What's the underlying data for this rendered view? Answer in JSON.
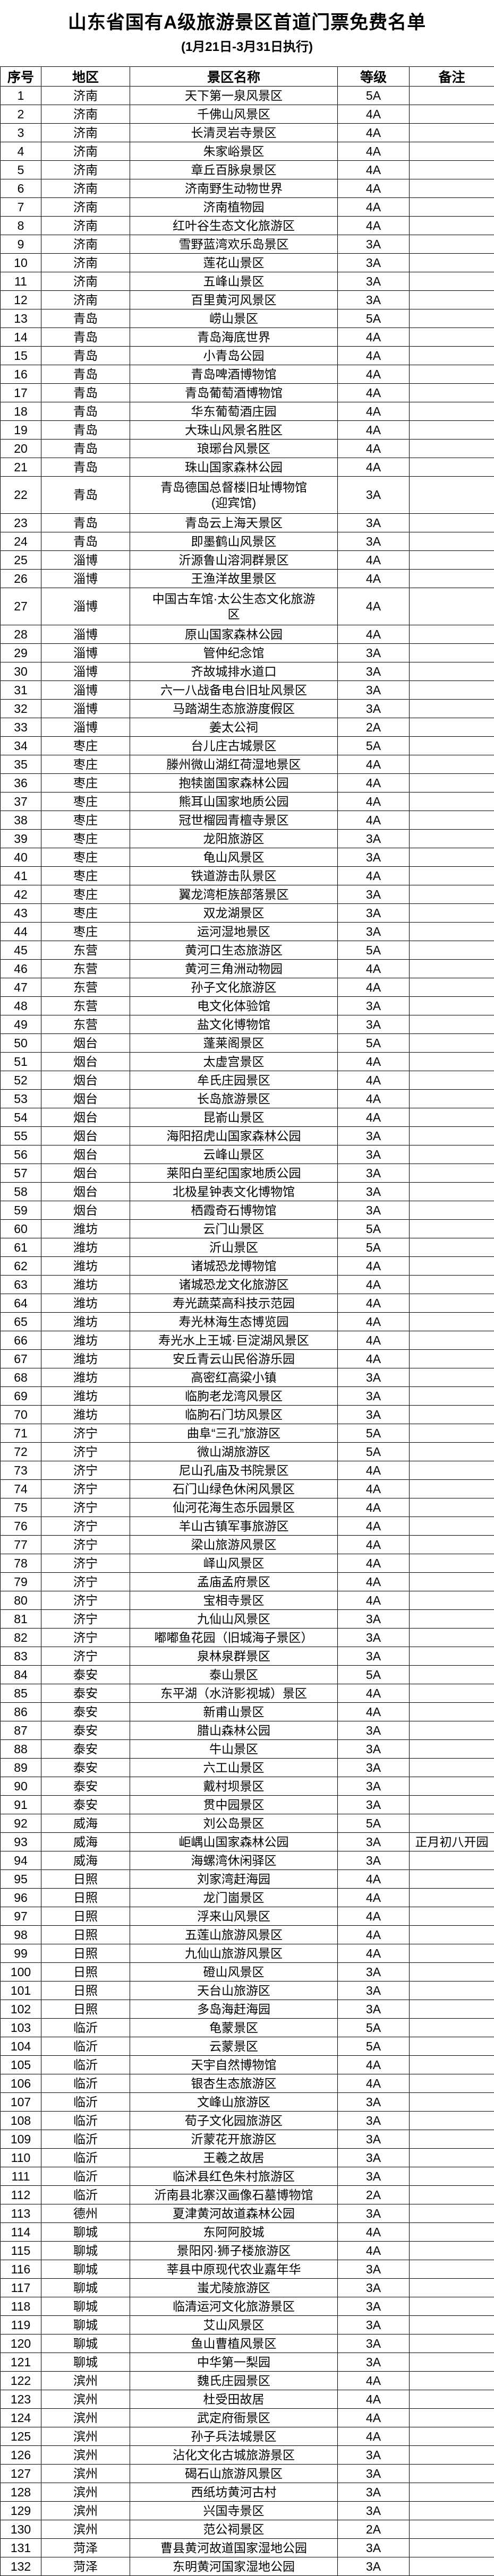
{
  "title": "山东省国有A级旅游景区首道门票免费名单",
  "subtitle": "(1月21日-3月31日执行)",
  "columns": [
    "序号",
    "地区",
    "景区名称",
    "等级",
    "备注"
  ],
  "rows": [
    {
      "no": "1",
      "region": "济南",
      "name": "天下第一泉风景区",
      "grade": "5A",
      "remark": ""
    },
    {
      "no": "2",
      "region": "济南",
      "name": "千佛山风景区",
      "grade": "4A",
      "remark": ""
    },
    {
      "no": "3",
      "region": "济南",
      "name": "长清灵岩寺景区",
      "grade": "4A",
      "remark": ""
    },
    {
      "no": "4",
      "region": "济南",
      "name": "朱家峪景区",
      "grade": "4A",
      "remark": ""
    },
    {
      "no": "5",
      "region": "济南",
      "name": "章丘百脉泉景区",
      "grade": "4A",
      "remark": ""
    },
    {
      "no": "6",
      "region": "济南",
      "name": "济南野生动物世界",
      "grade": "4A",
      "remark": ""
    },
    {
      "no": "7",
      "region": "济南",
      "name": "济南植物园",
      "grade": "4A",
      "remark": ""
    },
    {
      "no": "8",
      "region": "济南",
      "name": "红叶谷生态文化旅游区",
      "grade": "4A",
      "remark": ""
    },
    {
      "no": "9",
      "region": "济南",
      "name": "雪野蓝湾欢乐岛景区",
      "grade": "3A",
      "remark": ""
    },
    {
      "no": "10",
      "region": "济南",
      "name": "莲花山景区",
      "grade": "3A",
      "remark": ""
    },
    {
      "no": "11",
      "region": "济南",
      "name": "五峰山景区",
      "grade": "3A",
      "remark": ""
    },
    {
      "no": "12",
      "region": "济南",
      "name": "百里黄河风景区",
      "grade": "3A",
      "remark": ""
    },
    {
      "no": "13",
      "region": "青岛",
      "name": "崂山景区",
      "grade": "5A",
      "remark": ""
    },
    {
      "no": "14",
      "region": "青岛",
      "name": "青岛海底世界",
      "grade": "4A",
      "remark": ""
    },
    {
      "no": "15",
      "region": "青岛",
      "name": "小青岛公园",
      "grade": "4A",
      "remark": ""
    },
    {
      "no": "16",
      "region": "青岛",
      "name": "青岛啤酒博物馆",
      "grade": "4A",
      "remark": ""
    },
    {
      "no": "17",
      "region": "青岛",
      "name": "青岛葡萄酒博物馆",
      "grade": "4A",
      "remark": ""
    },
    {
      "no": "18",
      "region": "青岛",
      "name": "华东葡萄酒庄园",
      "grade": "4A",
      "remark": ""
    },
    {
      "no": "19",
      "region": "青岛",
      "name": "大珠山风景名胜区",
      "grade": "4A",
      "remark": ""
    },
    {
      "no": "20",
      "region": "青岛",
      "name": "琅琊台风景区",
      "grade": "4A",
      "remark": ""
    },
    {
      "no": "21",
      "region": "青岛",
      "name": "珠山国家森林公园",
      "grade": "4A",
      "remark": ""
    },
    {
      "no": "22",
      "region": "青岛",
      "name": "青岛德国总督楼旧址博物馆\n(迎宾馆)",
      "grade": "3A",
      "remark": ""
    },
    {
      "no": "23",
      "region": "青岛",
      "name": "青岛云上海天景区",
      "grade": "3A",
      "remark": ""
    },
    {
      "no": "24",
      "region": "青岛",
      "name": "即墨鹤山风景区",
      "grade": "3A",
      "remark": ""
    },
    {
      "no": "25",
      "region": "淄博",
      "name": "沂源鲁山溶洞群景区",
      "grade": "4A",
      "remark": ""
    },
    {
      "no": "26",
      "region": "淄博",
      "name": "王渔洋故里景区",
      "grade": "4A",
      "remark": ""
    },
    {
      "no": "27",
      "region": "淄博",
      "name": "中国古车馆·太公生态文化旅游\n区",
      "grade": "4A",
      "remark": ""
    },
    {
      "no": "28",
      "region": "淄博",
      "name": "原山国家森林公园",
      "grade": "4A",
      "remark": ""
    },
    {
      "no": "29",
      "region": "淄博",
      "name": "管仲纪念馆",
      "grade": "3A",
      "remark": ""
    },
    {
      "no": "30",
      "region": "淄博",
      "name": "齐故城排水道口",
      "grade": "3A",
      "remark": ""
    },
    {
      "no": "31",
      "region": "淄博",
      "name": "六一八战备电台旧址风景区",
      "grade": "3A",
      "remark": ""
    },
    {
      "no": "32",
      "region": "淄博",
      "name": "马踏湖生态旅游度假区",
      "grade": "3A",
      "remark": ""
    },
    {
      "no": "33",
      "region": "淄博",
      "name": "姜太公祠",
      "grade": "2A",
      "remark": ""
    },
    {
      "no": "34",
      "region": "枣庄",
      "name": "台儿庄古城景区",
      "grade": "5A",
      "remark": ""
    },
    {
      "no": "35",
      "region": "枣庄",
      "name": "滕州微山湖红荷湿地景区",
      "grade": "4A",
      "remark": ""
    },
    {
      "no": "36",
      "region": "枣庄",
      "name": "抱犊崮国家森林公园",
      "grade": "4A",
      "remark": ""
    },
    {
      "no": "37",
      "region": "枣庄",
      "name": "熊耳山国家地质公园",
      "grade": "4A",
      "remark": ""
    },
    {
      "no": "38",
      "region": "枣庄",
      "name": "冠世榴园青檀寺景区",
      "grade": "4A",
      "remark": ""
    },
    {
      "no": "39",
      "region": "枣庄",
      "name": "龙阳旅游区",
      "grade": "3A",
      "remark": ""
    },
    {
      "no": "40",
      "region": "枣庄",
      "name": "龟山风景区",
      "grade": "3A",
      "remark": ""
    },
    {
      "no": "41",
      "region": "枣庄",
      "name": "铁道游击队景区",
      "grade": "4A",
      "remark": ""
    },
    {
      "no": "42",
      "region": "枣庄",
      "name": "翼龙湾柜族部落景区",
      "grade": "3A",
      "remark": ""
    },
    {
      "no": "43",
      "region": "枣庄",
      "name": "双龙湖景区",
      "grade": "3A",
      "remark": ""
    },
    {
      "no": "44",
      "region": "枣庄",
      "name": "运河湿地景区",
      "grade": "3A",
      "remark": ""
    },
    {
      "no": "45",
      "region": "东营",
      "name": "黄河口生态旅游区",
      "grade": "5A",
      "remark": ""
    },
    {
      "no": "46",
      "region": "东营",
      "name": "黄河三角洲动物园",
      "grade": "4A",
      "remark": ""
    },
    {
      "no": "47",
      "region": "东营",
      "name": "孙子文化旅游区",
      "grade": "4A",
      "remark": ""
    },
    {
      "no": "48",
      "region": "东营",
      "name": "电文化体验馆",
      "grade": "3A",
      "remark": ""
    },
    {
      "no": "49",
      "region": "东营",
      "name": "盐文化博物馆",
      "grade": "3A",
      "remark": ""
    },
    {
      "no": "50",
      "region": "烟台",
      "name": "蓬莱阁景区",
      "grade": "5A",
      "remark": ""
    },
    {
      "no": "51",
      "region": "烟台",
      "name": "太虚宫景区",
      "grade": "4A",
      "remark": ""
    },
    {
      "no": "52",
      "region": "烟台",
      "name": "牟氏庄园景区",
      "grade": "4A",
      "remark": ""
    },
    {
      "no": "53",
      "region": "烟台",
      "name": "长岛旅游景区",
      "grade": "4A",
      "remark": ""
    },
    {
      "no": "54",
      "region": "烟台",
      "name": "昆嵛山景区",
      "grade": "4A",
      "remark": ""
    },
    {
      "no": "55",
      "region": "烟台",
      "name": "海阳招虎山国家森林公园",
      "grade": "3A",
      "remark": ""
    },
    {
      "no": "56",
      "region": "烟台",
      "name": "云峰山景区",
      "grade": "3A",
      "remark": ""
    },
    {
      "no": "57",
      "region": "烟台",
      "name": "莱阳白垩纪国家地质公园",
      "grade": "3A",
      "remark": ""
    },
    {
      "no": "58",
      "region": "烟台",
      "name": "北极星钟表文化博物馆",
      "grade": "3A",
      "remark": ""
    },
    {
      "no": "59",
      "region": "烟台",
      "name": "栖霞奇石博物馆",
      "grade": "3A",
      "remark": ""
    },
    {
      "no": "60",
      "region": "潍坊",
      "name": "云门山景区",
      "grade": "5A",
      "remark": ""
    },
    {
      "no": "61",
      "region": "潍坊",
      "name": "沂山景区",
      "grade": "5A",
      "remark": ""
    },
    {
      "no": "62",
      "region": "潍坊",
      "name": "诸城恐龙博物馆",
      "grade": "4A",
      "remark": ""
    },
    {
      "no": "63",
      "region": "潍坊",
      "name": "诸城恐龙文化旅游区",
      "grade": "4A",
      "remark": ""
    },
    {
      "no": "64",
      "region": "潍坊",
      "name": "寿光蔬菜高科技示范园",
      "grade": "4A",
      "remark": ""
    },
    {
      "no": "65",
      "region": "潍坊",
      "name": "寿光林海生态博览园",
      "grade": "4A",
      "remark": ""
    },
    {
      "no": "66",
      "region": "潍坊",
      "name": "寿光水上王城·巨淀湖风景区",
      "grade": "4A",
      "remark": ""
    },
    {
      "no": "67",
      "region": "潍坊",
      "name": "安丘青云山民俗游乐园",
      "grade": "4A",
      "remark": ""
    },
    {
      "no": "68",
      "region": "潍坊",
      "name": "高密红高粱小镇",
      "grade": "3A",
      "remark": ""
    },
    {
      "no": "69",
      "region": "潍坊",
      "name": "临朐老龙湾风景区",
      "grade": "3A",
      "remark": ""
    },
    {
      "no": "70",
      "region": "潍坊",
      "name": "临朐石门坊风景区",
      "grade": "3A",
      "remark": ""
    },
    {
      "no": "71",
      "region": "济宁",
      "name": "曲阜“三孔”旅游区",
      "grade": "5A",
      "remark": ""
    },
    {
      "no": "72",
      "region": "济宁",
      "name": "微山湖旅游区",
      "grade": "5A",
      "remark": ""
    },
    {
      "no": "73",
      "region": "济宁",
      "name": "尼山孔庙及书院景区",
      "grade": "4A",
      "remark": ""
    },
    {
      "no": "74",
      "region": "济宁",
      "name": "石门山绿色休闲风景区",
      "grade": "4A",
      "remark": ""
    },
    {
      "no": "75",
      "region": "济宁",
      "name": "仙河花海生态乐园景区",
      "grade": "4A",
      "remark": ""
    },
    {
      "no": "76",
      "region": "济宁",
      "name": "羊山古镇军事旅游区",
      "grade": "4A",
      "remark": ""
    },
    {
      "no": "77",
      "region": "济宁",
      "name": "梁山旅游风景区",
      "grade": "4A",
      "remark": ""
    },
    {
      "no": "78",
      "region": "济宁",
      "name": "峄山风景区",
      "grade": "4A",
      "remark": ""
    },
    {
      "no": "79",
      "region": "济宁",
      "name": "孟庙孟府景区",
      "grade": "4A",
      "remark": ""
    },
    {
      "no": "80",
      "region": "济宁",
      "name": "宝相寺景区",
      "grade": "4A",
      "remark": ""
    },
    {
      "no": "81",
      "region": "济宁",
      "name": "九仙山风景区",
      "grade": "3A",
      "remark": ""
    },
    {
      "no": "82",
      "region": "济宁",
      "name": "嘟嘟鱼花园（旧城海子景区）",
      "grade": "3A",
      "remark": ""
    },
    {
      "no": "83",
      "region": "济宁",
      "name": "泉林泉群景区",
      "grade": "3A",
      "remark": ""
    },
    {
      "no": "84",
      "region": "泰安",
      "name": "泰山景区",
      "grade": "5A",
      "remark": ""
    },
    {
      "no": "85",
      "region": "泰安",
      "name": "东平湖（水浒影视城）景区",
      "grade": "4A",
      "remark": ""
    },
    {
      "no": "86",
      "region": "泰安",
      "name": "新甫山景区",
      "grade": "4A",
      "remark": ""
    },
    {
      "no": "87",
      "region": "泰安",
      "name": "腊山森林公园",
      "grade": "3A",
      "remark": ""
    },
    {
      "no": "88",
      "region": "泰安",
      "name": "牛山景区",
      "grade": "3A",
      "remark": ""
    },
    {
      "no": "89",
      "region": "泰安",
      "name": "六工山景区",
      "grade": "3A",
      "remark": ""
    },
    {
      "no": "90",
      "region": "泰安",
      "name": "戴村坝景区",
      "grade": "3A",
      "remark": ""
    },
    {
      "no": "91",
      "region": "泰安",
      "name": "贯中园景区",
      "grade": "3A",
      "remark": ""
    },
    {
      "no": "92",
      "region": "威海",
      "name": "刘公岛景区",
      "grade": "5A",
      "remark": ""
    },
    {
      "no": "93",
      "region": "威海",
      "name": "岠嵎山国家森林公园",
      "grade": "3A",
      "remark": "正月初八开园"
    },
    {
      "no": "94",
      "region": "威海",
      "name": "海螺湾休闲驿区",
      "grade": "3A",
      "remark": ""
    },
    {
      "no": "95",
      "region": "日照",
      "name": "刘家湾赶海园",
      "grade": "4A",
      "remark": ""
    },
    {
      "no": "96",
      "region": "日照",
      "name": "龙门崮景区",
      "grade": "4A",
      "remark": ""
    },
    {
      "no": "97",
      "region": "日照",
      "name": "浮来山风景区",
      "grade": "4A",
      "remark": ""
    },
    {
      "no": "98",
      "region": "日照",
      "name": "五莲山旅游风景区",
      "grade": "4A",
      "remark": ""
    },
    {
      "no": "99",
      "region": "日照",
      "name": "九仙山旅游风景区",
      "grade": "4A",
      "remark": ""
    },
    {
      "no": "100",
      "region": "日照",
      "name": "磴山风景区",
      "grade": "3A",
      "remark": ""
    },
    {
      "no": "101",
      "region": "日照",
      "name": "天台山旅游区",
      "grade": "3A",
      "remark": ""
    },
    {
      "no": "102",
      "region": "日照",
      "name": "多岛海赶海园",
      "grade": "3A",
      "remark": ""
    },
    {
      "no": "103",
      "region": "临沂",
      "name": "龟蒙景区",
      "grade": "5A",
      "remark": ""
    },
    {
      "no": "104",
      "region": "临沂",
      "name": "云蒙景区",
      "grade": "5A",
      "remark": ""
    },
    {
      "no": "105",
      "region": "临沂",
      "name": "天宇自然博物馆",
      "grade": "4A",
      "remark": ""
    },
    {
      "no": "106",
      "region": "临沂",
      "name": "银杏生态旅游区",
      "grade": "4A",
      "remark": ""
    },
    {
      "no": "107",
      "region": "临沂",
      "name": "文峰山旅游区",
      "grade": "3A",
      "remark": ""
    },
    {
      "no": "108",
      "region": "临沂",
      "name": "荀子文化园旅游区",
      "grade": "3A",
      "remark": ""
    },
    {
      "no": "109",
      "region": "临沂",
      "name": "沂蒙花开旅游区",
      "grade": "3A",
      "remark": ""
    },
    {
      "no": "110",
      "region": "临沂",
      "name": "王羲之故居",
      "grade": "3A",
      "remark": ""
    },
    {
      "no": "111",
      "region": "临沂",
      "name": "临沭县红色朱村旅游区",
      "grade": "3A",
      "remark": ""
    },
    {
      "no": "112",
      "region": "临沂",
      "name": "沂南县北寨汉画像石墓博物馆",
      "grade": "2A",
      "remark": ""
    },
    {
      "no": "113",
      "region": "德州",
      "name": "夏津黄河故道森林公园",
      "grade": "3A",
      "remark": ""
    },
    {
      "no": "114",
      "region": "聊城",
      "name": "东阿阿胶城",
      "grade": "4A",
      "remark": ""
    },
    {
      "no": "115",
      "region": "聊城",
      "name": "景阳冈·狮子楼旅游区",
      "grade": "4A",
      "remark": ""
    },
    {
      "no": "116",
      "region": "聊城",
      "name": "莘县中原现代农业嘉年华",
      "grade": "3A",
      "remark": ""
    },
    {
      "no": "117",
      "region": "聊城",
      "name": "蚩尤陵旅游区",
      "grade": "3A",
      "remark": ""
    },
    {
      "no": "118",
      "region": "聊城",
      "name": "临清运河文化旅游景区",
      "grade": "3A",
      "remark": ""
    },
    {
      "no": "119",
      "region": "聊城",
      "name": "艾山风景区",
      "grade": "3A",
      "remark": ""
    },
    {
      "no": "120",
      "region": "聊城",
      "name": "鱼山曹植风景区",
      "grade": "3A",
      "remark": ""
    },
    {
      "no": "121",
      "region": "聊城",
      "name": "中华第一梨园",
      "grade": "3A",
      "remark": ""
    },
    {
      "no": "122",
      "region": "滨州",
      "name": "魏氏庄园景区",
      "grade": "4A",
      "remark": ""
    },
    {
      "no": "123",
      "region": "滨州",
      "name": "杜受田故居",
      "grade": "4A",
      "remark": ""
    },
    {
      "no": "124",
      "region": "滨州",
      "name": "武定府衙景区",
      "grade": "4A",
      "remark": ""
    },
    {
      "no": "125",
      "region": "滨州",
      "name": "孙子兵法城景区",
      "grade": "4A",
      "remark": ""
    },
    {
      "no": "126",
      "region": "滨州",
      "name": "沾化文化古城旅游景区",
      "grade": "3A",
      "remark": ""
    },
    {
      "no": "127",
      "region": "滨州",
      "name": "碣石山旅游风景区",
      "grade": "3A",
      "remark": ""
    },
    {
      "no": "128",
      "region": "滨州",
      "name": "西纸坊黄河古村",
      "grade": "3A",
      "remark": ""
    },
    {
      "no": "129",
      "region": "滨州",
      "name": "兴国寺景区",
      "grade": "3A",
      "remark": ""
    },
    {
      "no": "130",
      "region": "滨州",
      "name": "范公祠景区",
      "grade": "2A",
      "remark": ""
    },
    {
      "no": "131",
      "region": "菏泽",
      "name": "曹县黄河故道国家湿地公园",
      "grade": "3A",
      "remark": ""
    },
    {
      "no": "132",
      "region": "菏泽",
      "name": "东明黄河国家湿地公园",
      "grade": "3A",
      "remark": ""
    }
  ]
}
